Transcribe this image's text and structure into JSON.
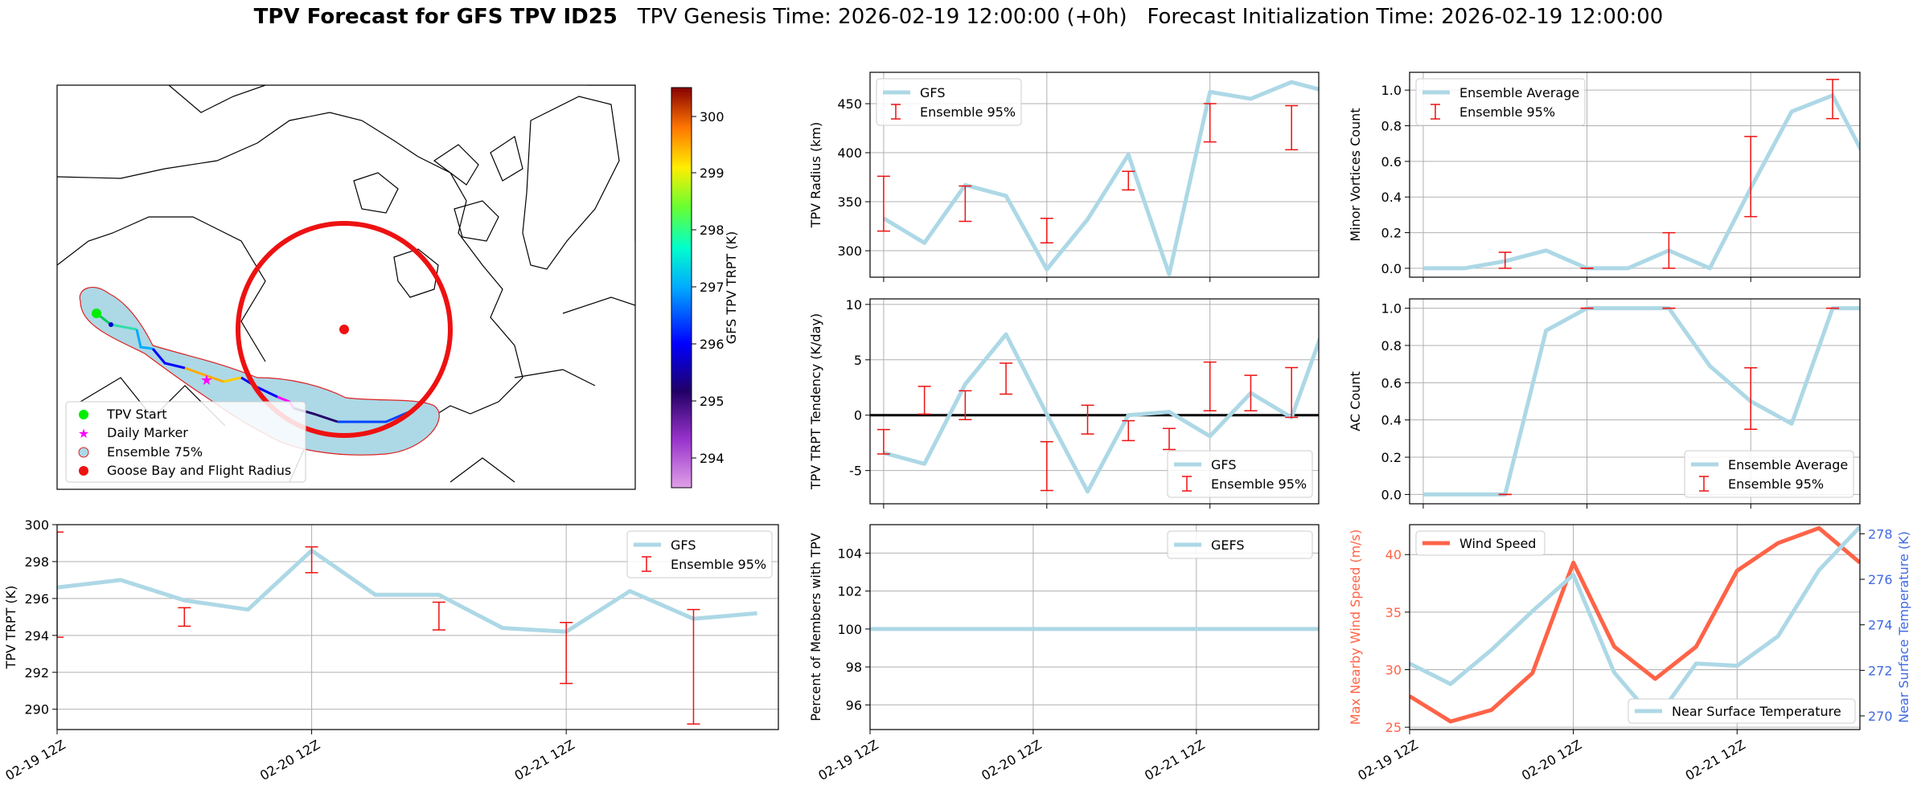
{
  "header": {
    "title_bold": "TPV Forecast for GFS TPV ID25",
    "genesis": "TPV Genesis Time: 2026-02-19 12:00:00 (+0h)",
    "init": "Forecast Initialization Time: 2026-02-19 12:00:00"
  },
  "map": {
    "colorbar_label": "GFS TPV TRPT (K)",
    "colorbar_ticks": [
      "300",
      "299",
      "298",
      "297",
      "296",
      "295",
      "294"
    ],
    "legend": [
      "TPV Start",
      "Daily Marker",
      "Ensemble 75%",
      "Goose Bay and Flight Radius"
    ],
    "colors": {
      "start": "#00ee00",
      "marker": "#ff00ff",
      "ellipse_fill": "#add8e6",
      "ellipse_edge": "#dd2222",
      "radius": "#ee1111"
    }
  },
  "time_ticks": [
    "02-19 12Z",
    "02-20 12Z",
    "02-21 12Z"
  ],
  "chart_data": [
    {
      "id": "radius",
      "type": "line",
      "ylabel": "TPV Radius (km)",
      "yticks": [
        "300",
        "350",
        "400",
        "450"
      ],
      "ylim": [
        273,
        482
      ],
      "x": [
        0,
        6,
        12,
        18,
        24,
        30,
        36,
        42,
        48,
        54,
        60,
        66
      ],
      "series": [
        {
          "name": "GFS",
          "values": [
            333,
            308,
            367,
            356,
            281,
            332,
            398,
            276,
            462,
            455,
            472,
            461
          ]
        }
      ],
      "errorbars": {
        "name": "Ensemble 95%",
        "x": [
          0,
          12,
          24,
          36,
          48,
          60
        ],
        "low": [
          320,
          330,
          308,
          362,
          411,
          403
        ],
        "high": [
          376,
          366,
          333,
          381,
          450,
          448
        ]
      },
      "legend": [
        "GFS",
        "Ensemble 95%"
      ]
    },
    {
      "id": "minor",
      "type": "line",
      "ylabel": "Minor Vortices Count",
      "yticks": [
        "0.0",
        "0.2",
        "0.4",
        "0.6",
        "0.8",
        "1.0"
      ],
      "ylim": [
        -0.05,
        1.1
      ],
      "x": [
        0,
        6,
        12,
        18,
        24,
        30,
        36,
        42,
        48,
        54,
        60,
        66
      ],
      "series": [
        {
          "name": "Ensemble Average",
          "values": [
            0.0,
            0.0,
            0.04,
            0.1,
            0.0,
            0.0,
            0.1,
            0.0,
            0.45,
            0.88,
            0.97,
            0.53
          ]
        }
      ],
      "errorbars": {
        "name": "Ensemble 95%",
        "x": [
          12,
          24,
          36,
          48,
          60
        ],
        "low": [
          0.0,
          0.0,
          0.0,
          0.29,
          0.84
        ],
        "high": [
          0.09,
          0.0,
          0.2,
          0.74,
          1.06
        ]
      },
      "legend": [
        "Ensemble Average",
        "Ensemble 95%"
      ]
    },
    {
      "id": "tendency",
      "type": "line",
      "ylabel": "TPV TRPT Tendency (K/day)",
      "yticks": [
        "-5",
        "0",
        "5",
        "10"
      ],
      "ylim": [
        -8,
        10.5
      ],
      "x": [
        0,
        6,
        12,
        18,
        24,
        30,
        36,
        42,
        48,
        54,
        60,
        66
      ],
      "series": [
        {
          "name": "GFS",
          "values": [
            -3.4,
            -4.4,
            2.8,
            7.3,
            0.1,
            -6.9,
            0.0,
            0.3,
            -1.9,
            2.0,
            -0.2,
            10.0
          ]
        }
      ],
      "errorbars": {
        "name": "Ensemble 95%",
        "x": [
          0,
          6,
          12,
          18,
          24,
          30,
          36,
          42,
          48,
          54,
          60,
          66
        ],
        "low": [
          -3.5,
          0.1,
          -0.4,
          1.9,
          -6.8,
          -1.7,
          -2.3,
          -3.1,
          0.4,
          0.4,
          -0.2,
          -0.9
        ],
        "high": [
          -1.3,
          2.6,
          2.2,
          4.7,
          -2.4,
          0.9,
          -0.5,
          -1.2,
          4.8,
          3.6,
          4.3,
          2.8
        ]
      },
      "hline": 0,
      "legend": [
        "GFS",
        "Ensemble 95%"
      ]
    },
    {
      "id": "ac",
      "type": "line",
      "ylabel": "AC Count",
      "yticks": [
        "0.0",
        "0.2",
        "0.4",
        "0.6",
        "0.8",
        "1.0"
      ],
      "ylim": [
        -0.05,
        1.05
      ],
      "x": [
        0,
        6,
        12,
        18,
        24,
        30,
        36,
        42,
        48,
        54,
        60,
        66
      ],
      "series": [
        {
          "name": "Ensemble Average",
          "values": [
            0.0,
            0.0,
            0.0,
            0.88,
            1.0,
            1.0,
            1.0,
            0.69,
            0.5,
            0.38,
            1.0,
            1.0
          ]
        }
      ],
      "errorbars": {
        "name": "Ensemble 95%",
        "x": [
          12,
          24,
          36,
          48,
          60
        ],
        "low": [
          0.0,
          1.0,
          1.0,
          0.35,
          1.0
        ],
        "high": [
          0.0,
          1.0,
          1.0,
          0.68,
          1.0
        ]
      },
      "legend": [
        "Ensemble Average",
        "Ensemble 95%"
      ]
    },
    {
      "id": "trpt",
      "type": "line",
      "ylabel": "TPV TRPT (K)",
      "yticks": [
        "290",
        "292",
        "294",
        "296",
        "298",
        "300"
      ],
      "ylim": [
        288.9,
        300
      ],
      "x": [
        0,
        6,
        12,
        18,
        24,
        30,
        36,
        42,
        48,
        54,
        60,
        66
      ],
      "series": [
        {
          "name": "GFS",
          "values": [
            296.6,
            297.0,
            295.9,
            295.4,
            298.6,
            296.2,
            296.2,
            294.4,
            294.2,
            296.4,
            294.9,
            295.2
          ]
        }
      ],
      "errorbars": {
        "name": "Ensemble 95%",
        "x": [
          0,
          12,
          24,
          36,
          48,
          60
        ],
        "low": [
          293.9,
          294.5,
          297.4,
          294.3,
          291.4,
          289.2
        ],
        "high": [
          299.6,
          295.5,
          298.8,
          295.8,
          294.7,
          295.4
        ]
      },
      "legend": [
        "GFS",
        "Ensemble 95%"
      ]
    },
    {
      "id": "percent",
      "type": "line",
      "ylabel": "Percent of Members with TPV",
      "yticks": [
        "96",
        "98",
        "100",
        "102",
        "104"
      ],
      "ylim": [
        94.7,
        105.5
      ],
      "x": [
        0,
        66
      ],
      "series": [
        {
          "name": "GEFS",
          "values": [
            100,
            100
          ]
        }
      ],
      "legend": [
        "GEFS"
      ]
    },
    {
      "id": "wind",
      "type": "line",
      "ylabel": "Max Nearby Wind Speed (m/s)",
      "ylabel_right": "Near Surface Temperature (K)",
      "yticks": [
        "25",
        "30",
        "35",
        "40"
      ],
      "yticks_right": [
        "270",
        "272",
        "274",
        "276",
        "278"
      ],
      "ylim": [
        24.8,
        42.6
      ],
      "ylim_right": [
        269.4,
        278.4
      ],
      "x": [
        0,
        6,
        12,
        18,
        24,
        30,
        36,
        42,
        48,
        54,
        60,
        66
      ],
      "series": [
        {
          "name": "Wind Speed",
          "values": [
            27.7,
            25.5,
            26.5,
            29.7,
            39.3,
            32.0,
            29.2,
            32.0,
            38.6,
            41.0,
            42.3,
            39.3
          ]
        },
        {
          "name": "Near Surface Temperature",
          "values": [
            272.3,
            271.4,
            272.9,
            274.6,
            276.2,
            271.9,
            269.8,
            272.3,
            272.2,
            273.5,
            276.4,
            278.3
          ]
        }
      ],
      "legend": [
        "Wind Speed",
        "Near Surface Temperature"
      ]
    }
  ]
}
